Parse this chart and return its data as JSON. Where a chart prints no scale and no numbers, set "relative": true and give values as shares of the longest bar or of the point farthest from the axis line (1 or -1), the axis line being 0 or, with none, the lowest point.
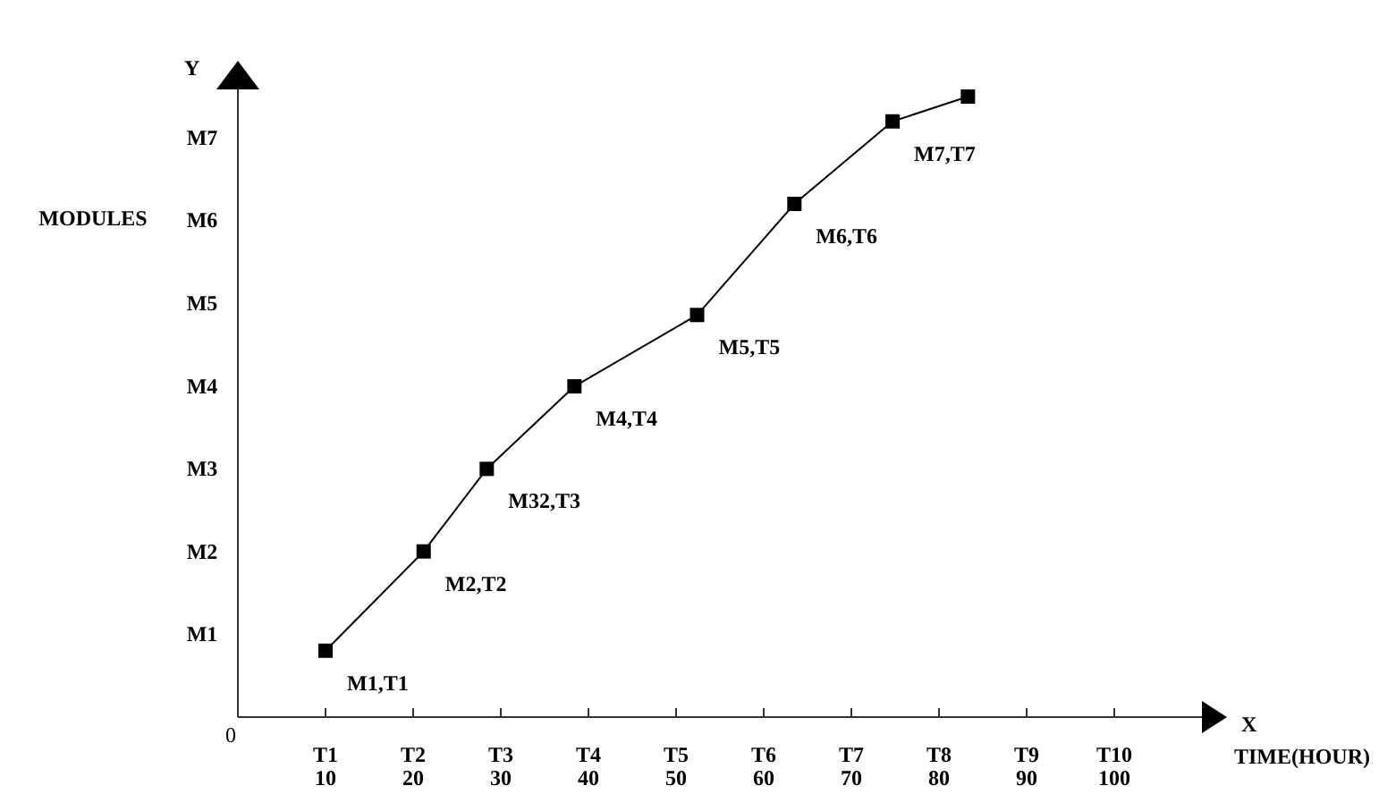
{
  "chart_data": {
    "type": "line",
    "xlabel": "TIME(HOUR)",
    "ylabel": "MODULES",
    "relative": true,
    "x": [
      10,
      21.2,
      28.4,
      38.4,
      52.4,
      63.5,
      74.7,
      83.3
    ],
    "series": [
      {
        "color": "#000000",
        "values": [
          0.107,
          0.267,
          0.4,
          0.533,
          0.648,
          0.827,
          0.96,
          1
        ]
      }
    ],
    "marker": "square",
    "line_style": "solid",
    "xlim": [
      0,
      110
    ],
    "xticks": [
      10,
      20,
      30,
      40,
      50,
      60,
      70,
      80,
      90,
      100
    ],
    "annotations": [
      "Y",
      "X",
      "0",
      "M1",
      "M2",
      "M3",
      "M4",
      "M5",
      "M6",
      "M7",
      "T1",
      "T2",
      "T3",
      "T4",
      "T5",
      "T6",
      "T7",
      "T8",
      "T9",
      "T10",
      {
        "text": "M1,T1",
        "x": 10,
        "y": 0.107
      },
      {
        "text": "M2,T2",
        "x": 21.2,
        "y": 0.267
      },
      {
        "text": "M32,T3",
        "x": 28.4,
        "y": 0.4
      },
      {
        "text": "M4,T4",
        "x": 38.4,
        "y": 0.533
      },
      {
        "text": "M5,T5",
        "x": 52.4,
        "y": 0.648
      },
      {
        "text": "M6,T6",
        "x": 63.5,
        "y": 0.827
      },
      {
        "text": "M7,T7",
        "x": 74.7,
        "y": 0.96
      }
    ]
  }
}
